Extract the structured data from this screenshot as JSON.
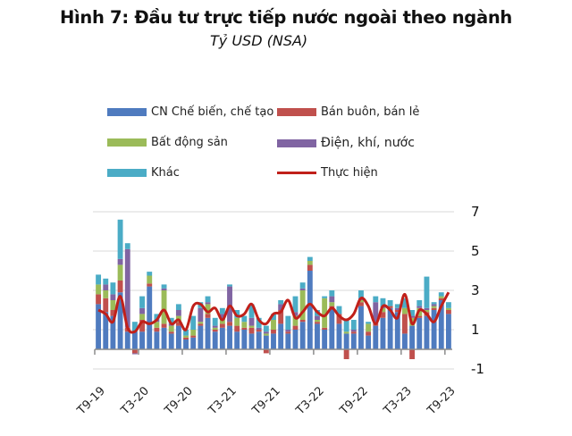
{
  "title": "Hình 7: Đầu tư trực tiếp nước ngoài theo ngành",
  "subtitle": "Tỷ USD (NSA)",
  "legend": [
    {
      "label": "CN Chế biến, chế tạo",
      "color": "#4f7bbf",
      "kind": "bar"
    },
    {
      "label": "Bán buôn, bán lẻ",
      "color": "#c0504d",
      "kind": "bar"
    },
    {
      "label": "Bất động sản",
      "color": "#9bbb59",
      "kind": "bar"
    },
    {
      "label": "Điện, khí, nước",
      "color": "#8064a2",
      "kind": "bar"
    },
    {
      "label": "Khác",
      "color": "#4bacc6",
      "kind": "bar"
    },
    {
      "label": "Thực hiện",
      "color": "#c0201a",
      "kind": "line"
    }
  ],
  "chart_data": {
    "type": "bar",
    "stacked": true,
    "title": "Hình 7: Đầu tư trực tiếp nước ngoài theo ngành",
    "subtitle": "Tỷ USD (NSA)",
    "xlabel": "",
    "ylabel": "Tỷ USD",
    "ylim": [
      -1,
      7
    ],
    "yticks": [
      7,
      5,
      3,
      1,
      -1
    ],
    "y_axis_position": "right",
    "grid": true,
    "legend_position": "top",
    "tick_labels": [
      "T9-19",
      "T3-20",
      "T9-20",
      "T3-21",
      "T9-21",
      "T3-22",
      "T9-22",
      "T3-23",
      "T9-23"
    ],
    "categories": [
      "T9-19",
      "T10-19",
      "T11-19",
      "T12-19",
      "T1-20",
      "T2-20",
      "T3-20",
      "T4-20",
      "T5-20",
      "T6-20",
      "T7-20",
      "T8-20",
      "T9-20",
      "T10-20",
      "T11-20",
      "T12-20",
      "T1-21",
      "T2-21",
      "T3-21",
      "T4-21",
      "T5-21",
      "T6-21",
      "T7-21",
      "T8-21",
      "T9-21",
      "T10-21",
      "T11-21",
      "T12-21",
      "T1-22",
      "T2-22",
      "T3-22",
      "T4-22",
      "T5-22",
      "T6-22",
      "T7-22",
      "T8-22",
      "T9-22",
      "T10-22",
      "T11-22",
      "T12-22",
      "T1-23",
      "T2-23",
      "T3-23",
      "T4-23",
      "T5-23",
      "T6-23",
      "T7-23",
      "T8-23",
      "T9-23"
    ],
    "series": [
      {
        "name": "CN Chế biến, chế tạo",
        "color": "#4f7bbf",
        "values": [
          2.3,
          1.9,
          1.7,
          2.9,
          0.9,
          0.9,
          0.9,
          3.2,
          0.9,
          1.1,
          0.8,
          1.2,
          0.5,
          0.6,
          1.2,
          1.6,
          0.9,
          1.1,
          1.2,
          0.9,
          1.0,
          0.8,
          0.9,
          0.7,
          0.8,
          1.3,
          0.8,
          1.0,
          1.4,
          4.0,
          1.3,
          1.0,
          2.1,
          1.3,
          0.8,
          0.8,
          2.2,
          0.7,
          1.2,
          1.6,
          2.1,
          1.9,
          0.8,
          1.2,
          1.6,
          1.7,
          2.0,
          2.5,
          1.8
        ]
      },
      {
        "name": "Bán buôn, bán lẻ",
        "color": "#c0504d",
        "values": [
          0.5,
          0.7,
          0.3,
          0.6,
          0.2,
          -0.2,
          0.6,
          0.15,
          0.2,
          0.2,
          0.1,
          0.2,
          0.1,
          0.1,
          0.1,
          0.2,
          0.1,
          0.2,
          0.2,
          0.3,
          0.1,
          0.3,
          0.1,
          -0.2,
          0.2,
          0.7,
          0.1,
          0.2,
          0.1,
          0.3,
          0.1,
          0.1,
          0.1,
          0.5,
          -0.5,
          0.1,
          0.2,
          0.2,
          0.1,
          0.3,
          0.1,
          0.1,
          1.0,
          -0.5,
          0.1,
          0.2,
          0.1,
          0.1,
          0.2
        ]
      },
      {
        "name": "Bất động sản",
        "color": "#9bbb59",
        "values": [
          0.5,
          0.4,
          0.5,
          0.8,
          0.0,
          0.0,
          0.3,
          0.4,
          0.3,
          1.7,
          0.3,
          0.3,
          0.1,
          0.3,
          0.1,
          0.5,
          0.1,
          0.2,
          0.0,
          0.4,
          0.3,
          0.1,
          0.0,
          0.1,
          0.5,
          0.0,
          0.0,
          0.5,
          1.5,
          0.2,
          0.1,
          1.5,
          0.2,
          0.0,
          0.1,
          0.0,
          0.1,
          0.4,
          0.0,
          0.2,
          0.0,
          0.0,
          0.3,
          0.4,
          0.4,
          0.1,
          0.1,
          0.1,
          0.1
        ]
      },
      {
        "name": "Điện, khí, nước",
        "color": "#8064a2",
        "values": [
          0.0,
          0.3,
          0.3,
          0.3,
          4.0,
          -0.05,
          0.3,
          0.0,
          0.1,
          0.1,
          0.1,
          0.3,
          0.0,
          0.0,
          0.7,
          0.1,
          0.1,
          0.3,
          1.8,
          0.0,
          0.0,
          0.4,
          0.1,
          0.1,
          0.0,
          0.3,
          0.1,
          0.2,
          0.1,
          0.0,
          0.2,
          0.0,
          0.3,
          0.0,
          0.0,
          0.1,
          0.1,
          0.0,
          1.1,
          0.1,
          0.0,
          0.1,
          0.0,
          0.1,
          0.1,
          0.1,
          0.1,
          0.0,
          0.0
        ]
      },
      {
        "name": "Khác",
        "color": "#4bacc6",
        "values": [
          0.5,
          0.3,
          0.6,
          2.0,
          0.3,
          0.5,
          0.6,
          0.2,
          0.3,
          0.2,
          0.3,
          0.3,
          0.3,
          0.7,
          0.3,
          0.3,
          0.4,
          0.3,
          0.1,
          0.4,
          0.3,
          0.7,
          0.5,
          0.3,
          0.3,
          0.2,
          0.7,
          0.8,
          0.3,
          0.2,
          0.3,
          0.1,
          0.3,
          0.4,
          0.6,
          0.5,
          0.4,
          0.1,
          0.3,
          0.4,
          0.3,
          0.2,
          0.5,
          0.3,
          0.3,
          1.6,
          0.1,
          0.2,
          0.3
        ]
      },
      {
        "name": "Thực hiện",
        "color": "#c0201a",
        "type": "line",
        "values": [
          2.0,
          1.8,
          1.4,
          2.7,
          1.1,
          0.9,
          1.4,
          1.3,
          1.5,
          2.0,
          1.3,
          1.5,
          1.0,
          2.2,
          2.3,
          1.9,
          2.1,
          1.5,
          2.2,
          1.7,
          1.8,
          2.3,
          1.5,
          1.3,
          1.8,
          1.9,
          2.5,
          1.6,
          1.9,
          2.3,
          1.9,
          1.7,
          2.1,
          1.7,
          1.5,
          1.8,
          2.6,
          2.2,
          1.3,
          2.2,
          2.0,
          1.6,
          2.8,
          1.3,
          2.0,
          1.8,
          1.4,
          2.2,
          2.9
        ]
      }
    ]
  }
}
